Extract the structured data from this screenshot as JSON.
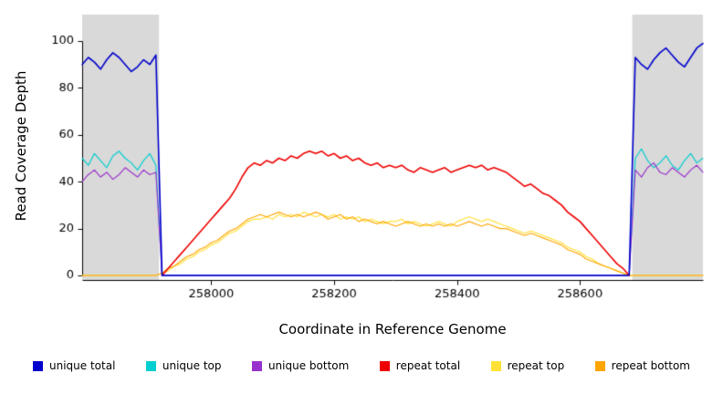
{
  "figure": {
    "background": "#ffffff",
    "axis_color": "#000000",
    "band_color": "#d9d9d9"
  },
  "chart_data": {
    "type": "line",
    "title": "",
    "xlabel": "Coordinate in Reference Genome",
    "ylabel": "Read Coverage Depth",
    "xlim": [
      257790,
      258800
    ],
    "ylim": [
      0,
      100
    ],
    "xticks": [
      258000,
      258200,
      258400,
      258600
    ],
    "yticks": [
      0,
      20,
      40,
      60,
      80,
      100
    ],
    "shaded_regions": [
      [
        257790,
        257915
      ],
      [
        258685,
        258800
      ]
    ],
    "legend_position": "bottom",
    "grid": false,
    "x_start": 257790,
    "x_step": 10,
    "series": [
      {
        "name": "unique total",
        "color": "#0000CD",
        "values": [
          90,
          93,
          91,
          88,
          92,
          95,
          93,
          90,
          87,
          89,
          92,
          90,
          94,
          0,
          0,
          0,
          0,
          0,
          0,
          0,
          0,
          0,
          0,
          0,
          0,
          0,
          0,
          0,
          0,
          0,
          0,
          0,
          0,
          0,
          0,
          0,
          0,
          0,
          0,
          0,
          0,
          0,
          0,
          0,
          0,
          0,
          0,
          0,
          0,
          0,
          0,
          0,
          0,
          0,
          0,
          0,
          0,
          0,
          0,
          0,
          0,
          0,
          0,
          0,
          0,
          0,
          0,
          0,
          0,
          0,
          0,
          0,
          0,
          0,
          0,
          0,
          0,
          0,
          0,
          0,
          0,
          0,
          0,
          0,
          0,
          0,
          0,
          0,
          0,
          0,
          93,
          90,
          88,
          92,
          95,
          97,
          94,
          91,
          89,
          93,
          97,
          99
        ]
      },
      {
        "name": "unique top",
        "color": "#00CED1",
        "values": [
          50,
          47,
          52,
          49,
          46,
          51,
          53,
          50,
          48,
          45,
          49,
          52,
          47,
          0,
          0,
          0,
          0,
          0,
          0,
          0,
          0,
          0,
          0,
          0,
          0,
          0,
          0,
          0,
          0,
          0,
          0,
          0,
          0,
          0,
          0,
          0,
          0,
          0,
          0,
          0,
          0,
          0,
          0,
          0,
          0,
          0,
          0,
          0,
          0,
          0,
          0,
          0,
          0,
          0,
          0,
          0,
          0,
          0,
          0,
          0,
          0,
          0,
          0,
          0,
          0,
          0,
          0,
          0,
          0,
          0,
          0,
          0,
          0,
          0,
          0,
          0,
          0,
          0,
          0,
          0,
          0,
          0,
          0,
          0,
          0,
          0,
          0,
          0,
          0,
          0,
          50,
          54,
          49,
          46,
          48,
          51,
          47,
          45,
          49,
          52,
          48,
          50
        ]
      },
      {
        "name": "unique bottom",
        "color": "#9932CC",
        "values": [
          40,
          43,
          45,
          42,
          44,
          41,
          43,
          46,
          44,
          42,
          45,
          43,
          44,
          0,
          0,
          0,
          0,
          0,
          0,
          0,
          0,
          0,
          0,
          0,
          0,
          0,
          0,
          0,
          0,
          0,
          0,
          0,
          0,
          0,
          0,
          0,
          0,
          0,
          0,
          0,
          0,
          0,
          0,
          0,
          0,
          0,
          0,
          0,
          0,
          0,
          0,
          0,
          0,
          0,
          0,
          0,
          0,
          0,
          0,
          0,
          0,
          0,
          0,
          0,
          0,
          0,
          0,
          0,
          0,
          0,
          0,
          0,
          0,
          0,
          0,
          0,
          0,
          0,
          0,
          0,
          0,
          0,
          0,
          0,
          0,
          0,
          0,
          0,
          0,
          0,
          45,
          42,
          46,
          48,
          44,
          43,
          46,
          44,
          42,
          45,
          47,
          44
        ]
      },
      {
        "name": "repeat total",
        "color": "#EE0000",
        "values": [
          null,
          null,
          null,
          null,
          null,
          null,
          null,
          null,
          null,
          null,
          null,
          null,
          null,
          0,
          3,
          6,
          9,
          12,
          15,
          18,
          21,
          24,
          27,
          30,
          33,
          37,
          42,
          46,
          48,
          47,
          49,
          48,
          50,
          49,
          51,
          50,
          52,
          53,
          52,
          53,
          51,
          52,
          50,
          51,
          49,
          50,
          48,
          47,
          48,
          46,
          47,
          46,
          47,
          45,
          44,
          46,
          45,
          44,
          45,
          46,
          44,
          45,
          46,
          47,
          46,
          47,
          45,
          46,
          45,
          44,
          42,
          40,
          38,
          39,
          37,
          35,
          34,
          32,
          30,
          27,
          25,
          23,
          20,
          17,
          14,
          11,
          8,
          5,
          3,
          0,
          null,
          null,
          null,
          null,
          null,
          null,
          null,
          null,
          null,
          null,
          null,
          null
        ]
      },
      {
        "name": "repeat top",
        "color": "#FFE135",
        "values": [
          0,
          0,
          0,
          0,
          0,
          0,
          0,
          0,
          0,
          0,
          0,
          0,
          0,
          1,
          2,
          4,
          5,
          7,
          8,
          10,
          11,
          13,
          14,
          16,
          18,
          19,
          21,
          23,
          24,
          24,
          25,
          24,
          26,
          25,
          26,
          25,
          27,
          26,
          25,
          26,
          25,
          26,
          24,
          25,
          24,
          25,
          23,
          24,
          23,
          22,
          23,
          23,
          24,
          22,
          23,
          22,
          21,
          22,
          23,
          22,
          21,
          23,
          24,
          25,
          24,
          23,
          24,
          23,
          22,
          21,
          20,
          19,
          18,
          19,
          18,
          17,
          16,
          15,
          14,
          12,
          11,
          10,
          8,
          7,
          5,
          4,
          3,
          2,
          1,
          0,
          0,
          0,
          0,
          0,
          0,
          0,
          0,
          0,
          0,
          0,
          0,
          0
        ]
      },
      {
        "name": "repeat bottom",
        "color": "#FFA500",
        "values": [
          0,
          0,
          0,
          0,
          0,
          0,
          0,
          0,
          0,
          0,
          0,
          0,
          0,
          1,
          3,
          4,
          6,
          8,
          9,
          11,
          12,
          14,
          15,
          17,
          19,
          20,
          22,
          24,
          25,
          26,
          25,
          26,
          27,
          26,
          25,
          26,
          25,
          26,
          27,
          26,
          24,
          25,
          26,
          24,
          25,
          23,
          24,
          23,
          22,
          23,
          22,
          21,
          22,
          23,
          22,
          21,
          22,
          21,
          22,
          21,
          22,
          21,
          22,
          23,
          22,
          21,
          22,
          21,
          20,
          20,
          19,
          18,
          17,
          18,
          17,
          16,
          15,
          14,
          13,
          11,
          10,
          9,
          7,
          6,
          5,
          4,
          3,
          2,
          1,
          0,
          0,
          0,
          0,
          0,
          0,
          0,
          0,
          0,
          0,
          0,
          0,
          0
        ]
      }
    ]
  }
}
